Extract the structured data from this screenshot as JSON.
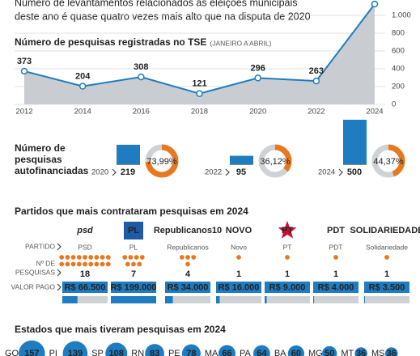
{
  "header": {
    "lines": [
      "Número de levantamentos relacionados às eleições municipais",
      "deste ano é quase quatro vezes mais alto que na disputa de 2020"
    ]
  },
  "chart_data": [
    {
      "type": "area",
      "title": "Número de pesquisas registradas no TSE",
      "subtitle": "(JANEIRO A ABRIL)",
      "x": [
        2012,
        2014,
        2016,
        2018,
        2020,
        2022,
        2024
      ],
      "xlim": [
        2012,
        2024
      ],
      "values": [
        373,
        204,
        308,
        121,
        296,
        263,
        1127
      ],
      "value_labels": [
        "373",
        "204",
        "308",
        "121",
        "296",
        "263",
        null
      ],
      "color": "#1f7cc0",
      "area_color": "#c9cdd1",
      "ylim": [
        0,
        1127
      ],
      "yticks": [
        0,
        200,
        400,
        600,
        800,
        {
          "value": 1000,
          "label": "1.000"
        }
      ],
      "grid": true,
      "y_axis_side": "right"
    },
    {
      "type": "bar-donut",
      "title": [
        "Número de",
        "pesquisas",
        "autofinanciadas"
      ],
      "categories": [
        "2020",
        "2022",
        "2024"
      ],
      "values": [
        219,
        95,
        500
      ],
      "color": "#1f7cc0",
      "share": {
        "values": [
          73.99,
          36.12,
          44.37
        ],
        "value_labels": [
          "73,99%",
          "36,12%",
          "44,37%"
        ],
        "color": "#e8781e",
        "rest_color": "#cfd2d5"
      }
    },
    {
      "type": "party-table",
      "title": "Partidos que mais contrataram pesquisas em 2024",
      "row_labels": {
        "party": "PARTIDO",
        "count": [
          "Nº DE",
          "PESQUISAS"
        ],
        "paid": "VALOR PAGO"
      },
      "logos": [
        "psd",
        "PL",
        "Republicanos10",
        "NOVO",
        "PT",
        "PDT",
        "SOLIDARIEDADE"
      ],
      "categories": [
        "PSD",
        "PL",
        "Republicanos",
        "Novo",
        "PT",
        "PDT",
        "Solidariedade"
      ],
      "counts": [
        18,
        7,
        4,
        1,
        1,
        1,
        1
      ],
      "count_color": "#e8781e",
      "paid": [
        66500,
        199000,
        34000,
        16000,
        9000,
        4000,
        3500
      ],
      "paid_labels": [
        "R$ 66.500",
        "R$ 199.000",
        "R$ 34.000",
        "R$ 16.000",
        "R$ 9.000",
        "R$ 4.000",
        "R$ 3.500"
      ],
      "paid_color": "#1f7cc0",
      "xlim": [
        0,
        199000
      ]
    },
    {
      "type": "bubble",
      "title": "Estados que mais tiveram pesquisas em 2024",
      "categories": [
        "GO",
        "PI",
        "SP",
        "RN",
        "PE",
        "MA",
        "PA",
        "BA",
        "MG",
        "MT",
        "MS"
      ],
      "values": [
        157,
        139,
        108,
        83,
        78,
        66,
        64,
        60,
        50,
        36,
        36
      ],
      "color": "#1f7cc0"
    }
  ]
}
